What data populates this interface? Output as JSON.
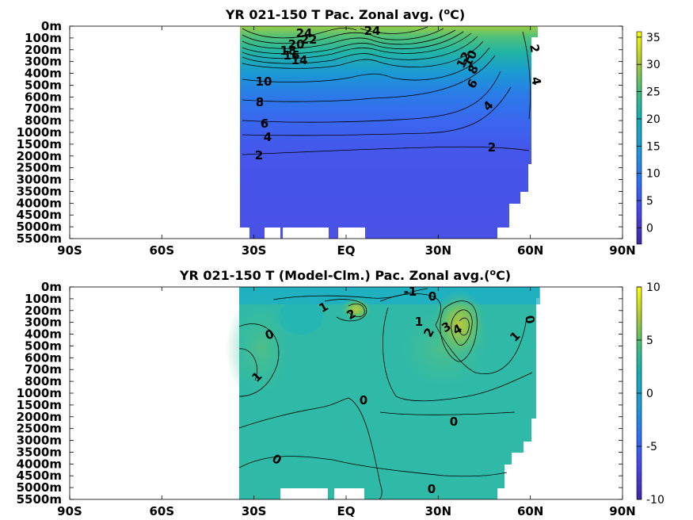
{
  "chart_data": [
    {
      "type": "heatmap",
      "title": "YR 021-150 T Pac. Zonal avg. (",
      "title_sup": "o",
      "title_end": "C)",
      "x_ticks": [
        "90S",
        "60S",
        "30S",
        "EQ",
        "30N",
        "60N",
        "90N"
      ],
      "y_ticks": [
        "0m",
        "100m",
        "200m",
        "300m",
        "400m",
        "500m",
        "600m",
        "700m",
        "800m",
        "1000m",
        "1500m",
        "2000m",
        "2500m",
        "3000m",
        "3500m",
        "4000m",
        "4500m",
        "5000m",
        "5500m"
      ],
      "colorbar": {
        "ticks": [
          "35",
          "30",
          "25",
          "20",
          "15",
          "10",
          "5",
          "0"
        ],
        "range": [
          -3,
          36
        ]
      },
      "contour_labels": [
        "24",
        "22",
        "20",
        "18",
        "16",
        "14",
        "24",
        "12",
        "10",
        "8",
        "6",
        "2",
        "4",
        "10",
        "8",
        "6",
        "4",
        "2",
        "2"
      ]
    },
    {
      "type": "heatmap",
      "title": "YR 021-150 T (Model-Clm.) Pac. Zonal avg.(",
      "title_sup": "o",
      "title_end": "C)",
      "x_ticks": [
        "90S",
        "60S",
        "30S",
        "EQ",
        "30N",
        "60N",
        "90N"
      ],
      "y_ticks": [
        "0m",
        "100m",
        "200m",
        "300m",
        "400m",
        "500m",
        "600m",
        "700m",
        "800m",
        "1000m",
        "1500m",
        "2000m",
        "2500m",
        "3000m",
        "3500m",
        "4000m",
        "4500m",
        "5000m",
        "5500m"
      ],
      "colorbar": {
        "ticks": [
          "10",
          "5",
          "0",
          "-5",
          "-10"
        ],
        "range": [
          -10,
          10
        ]
      },
      "contour_labels": [
        "-1",
        "0",
        "1",
        "2",
        "1",
        "2",
        "3",
        "4",
        "0",
        "1",
        "0",
        "1",
        "0",
        "0",
        "0",
        "0"
      ]
    }
  ]
}
